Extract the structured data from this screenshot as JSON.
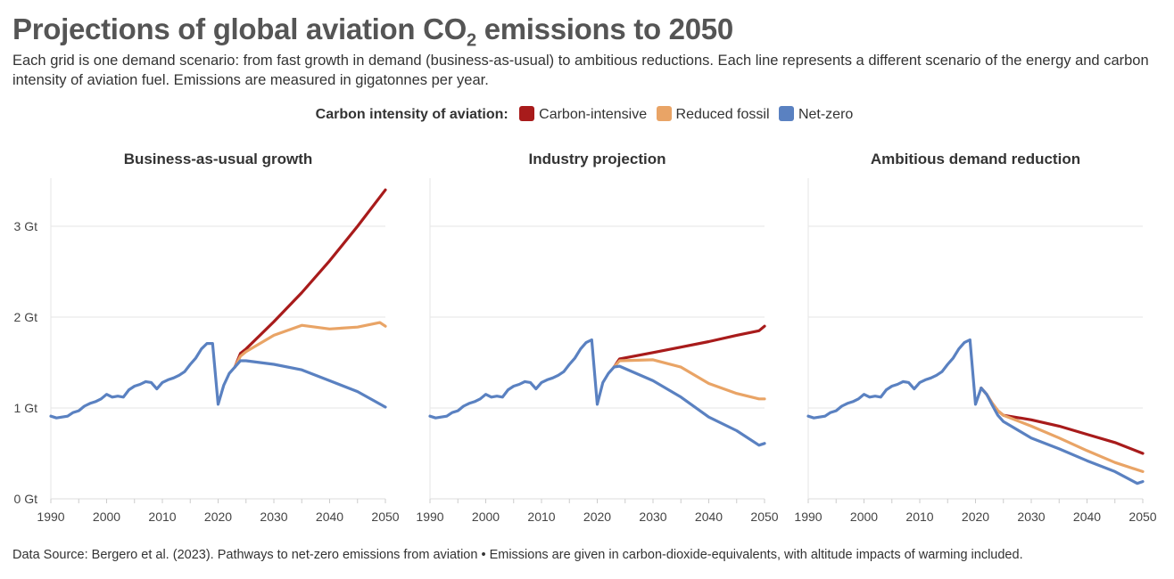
{
  "title": "Projections of global aviation CO",
  "title_sub": "2",
  "title_end": " emissions to 2050",
  "subtitle": "Each grid is one demand scenario: from fast growth in demand (business-as-usual) to ambitious reductions. Each line represents a different scenario of the energy and carbon intensity of aviation fuel. Emissions are measured in gigatonnes per year.",
  "legend": {
    "label": "Carbon intensity of aviation:",
    "items": [
      {
        "name": "Carbon-intensive",
        "color": "#a81b1b"
      },
      {
        "name": "Reduced fossil",
        "color": "#e9a466"
      },
      {
        "name": "Net-zero",
        "color": "#5a81c1"
      }
    ]
  },
  "footer": "Data Source: Bergero et al. (2023). Pathways to net-zero emissions from aviation • Emissions are given in carbon-dioxide-equivalents, with altitude impacts of warming included.",
  "chart_data": [
    {
      "type": "line",
      "title": "Business-as-usual growth",
      "xlim": [
        1990,
        2050
      ],
      "ylim": [
        0,
        3.5
      ],
      "xticks": [
        "1990",
        "2000",
        "2010",
        "2020",
        "2030",
        "2040",
        "2050"
      ],
      "yticks": [
        "0 Gt",
        "1 Gt",
        "2 Gt",
        "3 Gt"
      ],
      "grid": true,
      "series": [
        {
          "name": "Carbon-intensive",
          "x": [
            2023,
            2024,
            2025,
            2030,
            2035,
            2040,
            2045,
            2050
          ],
          "y": [
            1.45,
            1.6,
            1.65,
            1.95,
            2.27,
            2.62,
            3.0,
            3.4
          ]
        },
        {
          "name": "Reduced fossil",
          "x": [
            2023,
            2024,
            2025,
            2030,
            2035,
            2040,
            2045,
            2049,
            2050
          ],
          "y": [
            1.45,
            1.57,
            1.62,
            1.8,
            1.91,
            1.87,
            1.89,
            1.94,
            1.9
          ]
        },
        {
          "name": "Net-zero",
          "x": [
            1990,
            1991,
            1992,
            1993,
            1994,
            1995,
            1996,
            1997,
            1998,
            1999,
            2000,
            2001,
            2002,
            2003,
            2004,
            2005,
            2006,
            2007,
            2008,
            2009,
            2010,
            2011,
            2012,
            2013,
            2014,
            2015,
            2016,
            2017,
            2018,
            2019,
            2020,
            2021,
            2022,
            2023,
            2024,
            2025,
            2030,
            2035,
            2040,
            2045,
            2050
          ],
          "y": [
            0.91,
            0.89,
            0.9,
            0.91,
            0.95,
            0.97,
            1.02,
            1.05,
            1.07,
            1.1,
            1.15,
            1.12,
            1.13,
            1.12,
            1.2,
            1.24,
            1.26,
            1.29,
            1.28,
            1.21,
            1.28,
            1.31,
            1.33,
            1.36,
            1.4,
            1.48,
            1.55,
            1.65,
            1.71,
            1.71,
            1.04,
            1.25,
            1.38,
            1.45,
            1.52,
            1.52,
            1.48,
            1.42,
            1.3,
            1.18,
            1.01
          ]
        }
      ]
    },
    {
      "type": "line",
      "title": "Industry projection",
      "xlim": [
        1990,
        2050
      ],
      "ylim": [
        0,
        3.5
      ],
      "xticks": [
        "1990",
        "2000",
        "2010",
        "2020",
        "2030",
        "2040",
        "2050"
      ],
      "grid": true,
      "series": [
        {
          "name": "Carbon-intensive",
          "x": [
            2023,
            2024,
            2030,
            2035,
            2040,
            2045,
            2049,
            2050
          ],
          "y": [
            1.45,
            1.54,
            1.61,
            1.67,
            1.73,
            1.8,
            1.85,
            1.9
          ]
        },
        {
          "name": "Reduced fossil",
          "x": [
            2023,
            2024,
            2030,
            2035,
            2040,
            2045,
            2049,
            2050
          ],
          "y": [
            1.45,
            1.52,
            1.53,
            1.45,
            1.27,
            1.16,
            1.1,
            1.1
          ]
        },
        {
          "name": "Net-zero",
          "x": [
            1990,
            1991,
            1992,
            1993,
            1994,
            1995,
            1996,
            1997,
            1998,
            1999,
            2000,
            2001,
            2002,
            2003,
            2004,
            2005,
            2006,
            2007,
            2008,
            2009,
            2010,
            2011,
            2012,
            2013,
            2014,
            2015,
            2016,
            2017,
            2018,
            2019,
            2020,
            2021,
            2022,
            2023,
            2024,
            2030,
            2035,
            2040,
            2045,
            2049,
            2050
          ],
          "y": [
            0.91,
            0.89,
            0.9,
            0.91,
            0.95,
            0.97,
            1.02,
            1.05,
            1.07,
            1.1,
            1.15,
            1.12,
            1.13,
            1.12,
            1.2,
            1.24,
            1.26,
            1.29,
            1.28,
            1.21,
            1.28,
            1.31,
            1.33,
            1.36,
            1.4,
            1.48,
            1.55,
            1.65,
            1.72,
            1.75,
            1.04,
            1.28,
            1.38,
            1.45,
            1.46,
            1.3,
            1.12,
            0.9,
            0.75,
            0.59,
            0.61
          ]
        }
      ]
    },
    {
      "type": "line",
      "title": "Ambitious demand reduction",
      "xlim": [
        1990,
        2050
      ],
      "ylim": [
        0,
        3.5
      ],
      "xticks": [
        "1990",
        "2000",
        "2010",
        "2020",
        "2030",
        "2040",
        "2050"
      ],
      "grid": true,
      "series": [
        {
          "name": "Carbon-intensive",
          "x": [
            2021,
            2022,
            2023,
            2024,
            2025,
            2030,
            2035,
            2040,
            2045,
            2050
          ],
          "y": [
            1.22,
            1.15,
            1.05,
            0.97,
            0.92,
            0.87,
            0.8,
            0.71,
            0.62,
            0.5
          ]
        },
        {
          "name": "Reduced fossil",
          "x": [
            2021,
            2022,
            2023,
            2024,
            2025,
            2030,
            2035,
            2040,
            2045,
            2050
          ],
          "y": [
            1.22,
            1.15,
            1.05,
            0.97,
            0.92,
            0.8,
            0.67,
            0.53,
            0.4,
            0.3
          ]
        },
        {
          "name": "Net-zero",
          "x": [
            1990,
            1991,
            1992,
            1993,
            1994,
            1995,
            1996,
            1997,
            1998,
            1999,
            2000,
            2001,
            2002,
            2003,
            2004,
            2005,
            2006,
            2007,
            2008,
            2009,
            2010,
            2011,
            2012,
            2013,
            2014,
            2015,
            2016,
            2017,
            2018,
            2019,
            2020,
            2021,
            2022,
            2023,
            2024,
            2025,
            2030,
            2035,
            2040,
            2045,
            2049,
            2050
          ],
          "y": [
            0.91,
            0.89,
            0.9,
            0.91,
            0.95,
            0.97,
            1.02,
            1.05,
            1.07,
            1.1,
            1.15,
            1.12,
            1.13,
            1.12,
            1.2,
            1.24,
            1.26,
            1.29,
            1.28,
            1.21,
            1.28,
            1.31,
            1.33,
            1.36,
            1.4,
            1.48,
            1.55,
            1.65,
            1.72,
            1.75,
            1.04,
            1.22,
            1.15,
            1.03,
            0.92,
            0.85,
            0.67,
            0.55,
            0.42,
            0.3,
            0.17,
            0.19
          ]
        }
      ]
    }
  ]
}
